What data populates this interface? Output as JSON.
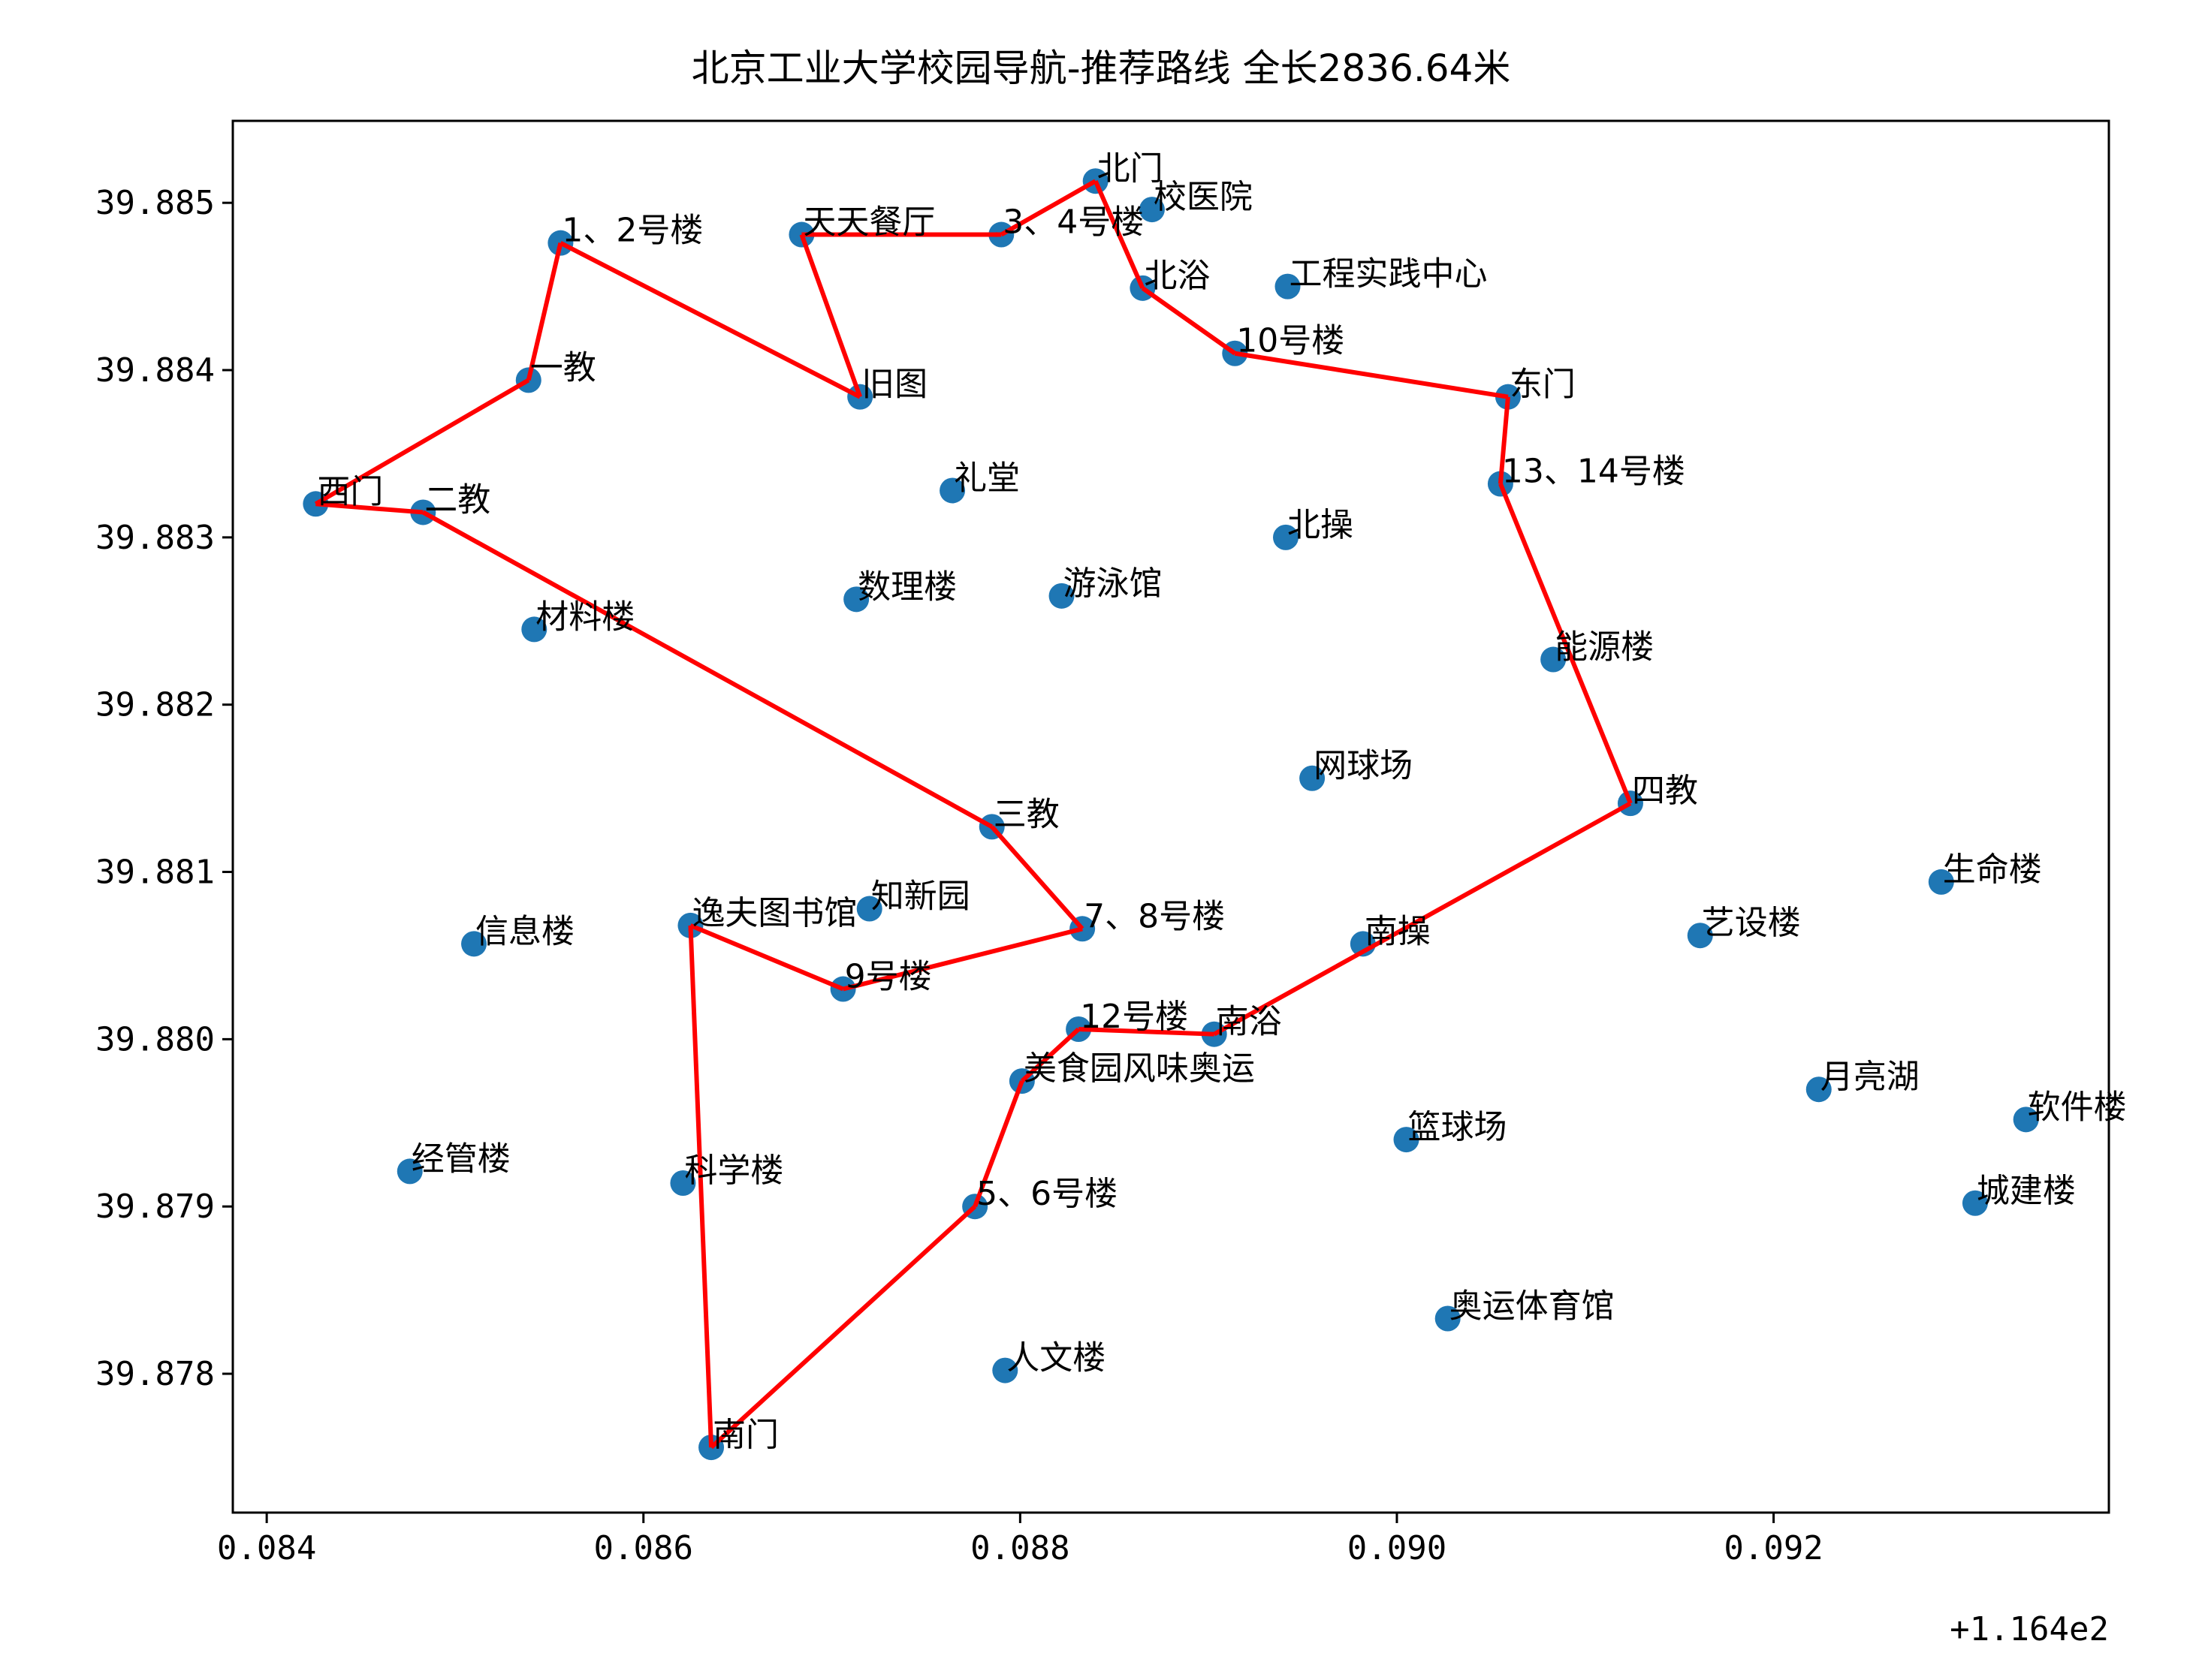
{
  "chart_data": {
    "type": "scatter",
    "title": "北京工业大学校园导航-推荐路线    全长2836.64米",
    "xlabel": "",
    "ylabel": "",
    "x_offset_text": "+1.164e2",
    "x_tick_labels": [
      "0.084",
      "0.086",
      "0.088",
      "0.090",
      "0.092"
    ],
    "y_tick_labels": [
      "39.878",
      "39.879",
      "39.880",
      "39.881",
      "39.882",
      "39.883",
      "39.884",
      "39.885"
    ],
    "x_ticks": [
      0.084,
      0.086,
      0.088,
      0.09,
      0.092
    ],
    "y_ticks": [
      39.878,
      39.879,
      39.88,
      39.881,
      39.882,
      39.883,
      39.884,
      39.885
    ],
    "xlim": [
      0.08382,
      0.09378
    ],
    "ylim": [
      39.87717,
      39.88549
    ],
    "grid": false,
    "point_color": "#1f77b4",
    "route_color": "#ff0000",
    "points": [
      {
        "name": "北门",
        "x": 0.0884,
        "y": 39.88513
      },
      {
        "name": "校医院",
        "x": 0.0887,
        "y": 39.88496
      },
      {
        "name": "1、2号楼",
        "x": 0.08556,
        "y": 39.88476
      },
      {
        "name": "天天餐厅",
        "x": 0.08684,
        "y": 39.88481
      },
      {
        "name": "3、4号楼",
        "x": 0.0879,
        "y": 39.88481
      },
      {
        "name": "北浴",
        "x": 0.08865,
        "y": 39.88449
      },
      {
        "name": "工程实践中心",
        "x": 0.08942,
        "y": 39.8845
      },
      {
        "name": "10号楼",
        "x": 0.08914,
        "y": 39.8841
      },
      {
        "name": "一教",
        "x": 0.08539,
        "y": 39.88394
      },
      {
        "name": "旧图",
        "x": 0.08715,
        "y": 39.88384
      },
      {
        "name": "东门",
        "x": 0.09059,
        "y": 39.88384
      },
      {
        "name": "礼堂",
        "x": 0.08764,
        "y": 39.88328
      },
      {
        "name": "13、14号楼",
        "x": 0.09055,
        "y": 39.88332
      },
      {
        "name": "西门",
        "x": 0.08426,
        "y": 39.8832
      },
      {
        "name": "二教",
        "x": 0.08483,
        "y": 39.88315
      },
      {
        "name": "北操",
        "x": 0.08941,
        "y": 39.883
      },
      {
        "name": "数理楼",
        "x": 0.08713,
        "y": 39.88263
      },
      {
        "name": "游泳馆",
        "x": 0.08822,
        "y": 39.88265
      },
      {
        "name": "材料楼",
        "x": 0.08542,
        "y": 39.88245
      },
      {
        "name": "能源楼",
        "x": 0.09083,
        "y": 39.88227
      },
      {
        "name": "网球场",
        "x": 0.08955,
        "y": 39.88156
      },
      {
        "name": "四教",
        "x": 0.09124,
        "y": 39.88141
      },
      {
        "name": "三教",
        "x": 0.08785,
        "y": 39.88127
      },
      {
        "name": "生命楼",
        "x": 0.09289,
        "y": 39.88094
      },
      {
        "name": "知新园",
        "x": 0.0872,
        "y": 39.88078
      },
      {
        "name": "逸夫图书馆",
        "x": 0.08625,
        "y": 39.88068
      },
      {
        "name": "7、8号楼",
        "x": 0.08833,
        "y": 39.88066
      },
      {
        "name": "信息楼",
        "x": 0.0851,
        "y": 39.88057
      },
      {
        "name": "南操",
        "x": 0.08982,
        "y": 39.88057
      },
      {
        "name": "艺设楼",
        "x": 0.09161,
        "y": 39.88062
      },
      {
        "name": "9号楼",
        "x": 0.08706,
        "y": 39.8803
      },
      {
        "name": "12号楼",
        "x": 0.08831,
        "y": 39.88006
      },
      {
        "name": "南浴",
        "x": 0.08903,
        "y": 39.88003
      },
      {
        "name": "美食园风味奥运",
        "x": 0.08801,
        "y": 39.87975
      },
      {
        "name": "月亮湖",
        "x": 0.09224,
        "y": 39.8797
      },
      {
        "name": "软件楼",
        "x": 0.09334,
        "y": 39.87952
      },
      {
        "name": "篮球场",
        "x": 0.09005,
        "y": 39.8794
      },
      {
        "name": "经管楼",
        "x": 0.08476,
        "y": 39.87921
      },
      {
        "name": "科学楼",
        "x": 0.08621,
        "y": 39.87914
      },
      {
        "name": "城建楼",
        "x": 0.09307,
        "y": 39.87902
      },
      {
        "name": "5、6号楼",
        "x": 0.08776,
        "y": 39.879
      },
      {
        "name": "奥运体育馆",
        "x": 0.09027,
        "y": 39.87833
      },
      {
        "name": "人文楼",
        "x": 0.08792,
        "y": 39.87802
      },
      {
        "name": "南门",
        "x": 0.08636,
        "y": 39.87756
      }
    ],
    "route": [
      "南门",
      "逸夫图书馆",
      "9号楼",
      "7、8号楼",
      "三教",
      "二教",
      "西门",
      "一教",
      "1、2号楼",
      "旧图",
      "天天餐厅",
      "3、4号楼",
      "北门",
      "北浴",
      "10号楼",
      "东门",
      "13、14号楼",
      "四教",
      "南浴",
      "12号楼",
      "美食园风味奥运",
      "5、6号楼",
      "南门"
    ]
  }
}
